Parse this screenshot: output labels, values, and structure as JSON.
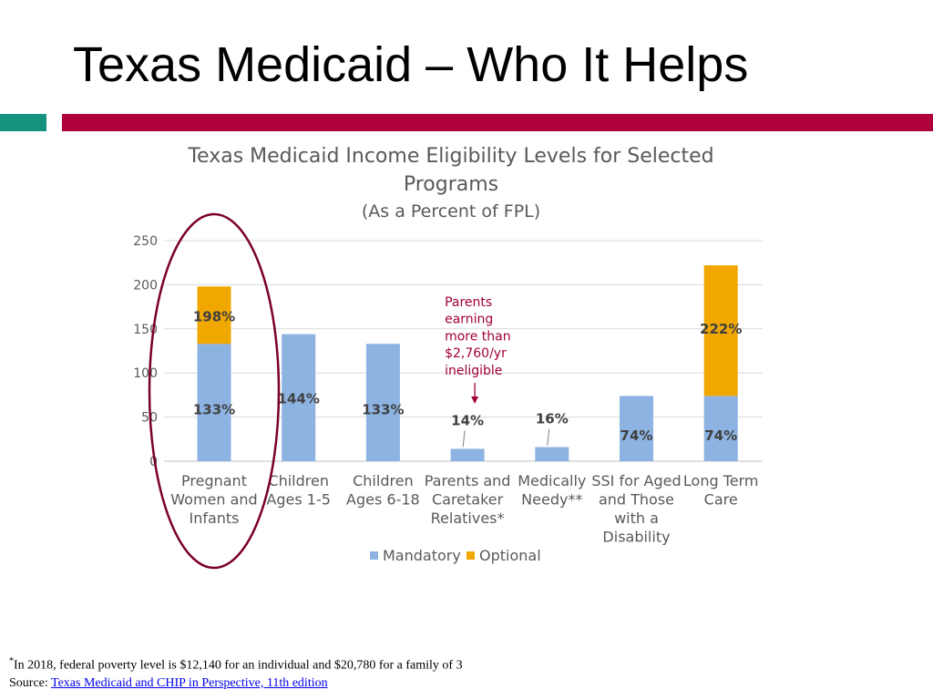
{
  "slide": {
    "title": "Texas Medicaid – Who It Helps",
    "accent_colors": {
      "teal": "#16937f",
      "crimson": "#b0003a"
    }
  },
  "chart_data": {
    "type": "bar",
    "stacked": true,
    "title": "Texas Medicaid Income Eligibility Levels for Selected Programs",
    "subtitle": "(As a Percent of FPL)",
    "ylim": [
      0,
      250
    ],
    "yticks": [
      0,
      50,
      100,
      150,
      200,
      250
    ],
    "grid": true,
    "legend_position": "bottom",
    "categories": [
      [
        "Pregnant",
        "Women and",
        "Infants"
      ],
      [
        "Children",
        "Ages 1-5"
      ],
      [
        "Children",
        "Ages 6-18"
      ],
      [
        "Parents and",
        "Caretaker",
        "Relatives*"
      ],
      [
        "Medically",
        "Needy**"
      ],
      [
        "SSI for Aged",
        "and Those",
        "with a",
        "Disability"
      ],
      [
        "Long Term",
        "Care"
      ]
    ],
    "series": [
      {
        "name": "Mandatory",
        "color": "#8db3e2",
        "values": [
          133,
          144,
          133,
          14,
          16,
          74,
          74
        ]
      },
      {
        "name": "Optional",
        "color": "#f0a800",
        "values": [
          65,
          0,
          0,
          0,
          0,
          0,
          148
        ]
      }
    ],
    "data_labels": [
      {
        "category": 0,
        "value": 133,
        "text": "133%"
      },
      {
        "category": 0,
        "value": 198,
        "text": "198%"
      },
      {
        "category": 1,
        "value": 144,
        "text": "144%"
      },
      {
        "category": 2,
        "value": 133,
        "text": "133%"
      },
      {
        "category": 3,
        "value": 14,
        "text": "14%"
      },
      {
        "category": 4,
        "value": 16,
        "text": "16%"
      },
      {
        "category": 5,
        "value": 74,
        "text": "74%"
      },
      {
        "category": 6,
        "value": 74,
        "text": "74%"
      },
      {
        "category": 6,
        "value": 222,
        "text": "222%"
      }
    ],
    "annotation": {
      "category": 3,
      "lines": [
        "Parents",
        "earning",
        "more than",
        "$2,760/yr",
        "ineligible"
      ],
      "color": "#a0003a"
    },
    "highlight_circle": {
      "category": 0,
      "color": "#7a0026"
    }
  },
  "footnote": {
    "marker": "*",
    "text": "In 2018, federal poverty level is $12,140 for an individual and $20,780 for a family of 3",
    "source_label": "Source: ",
    "source_link": "Texas Medicaid and CHIP in Perspective, 11th edition"
  }
}
